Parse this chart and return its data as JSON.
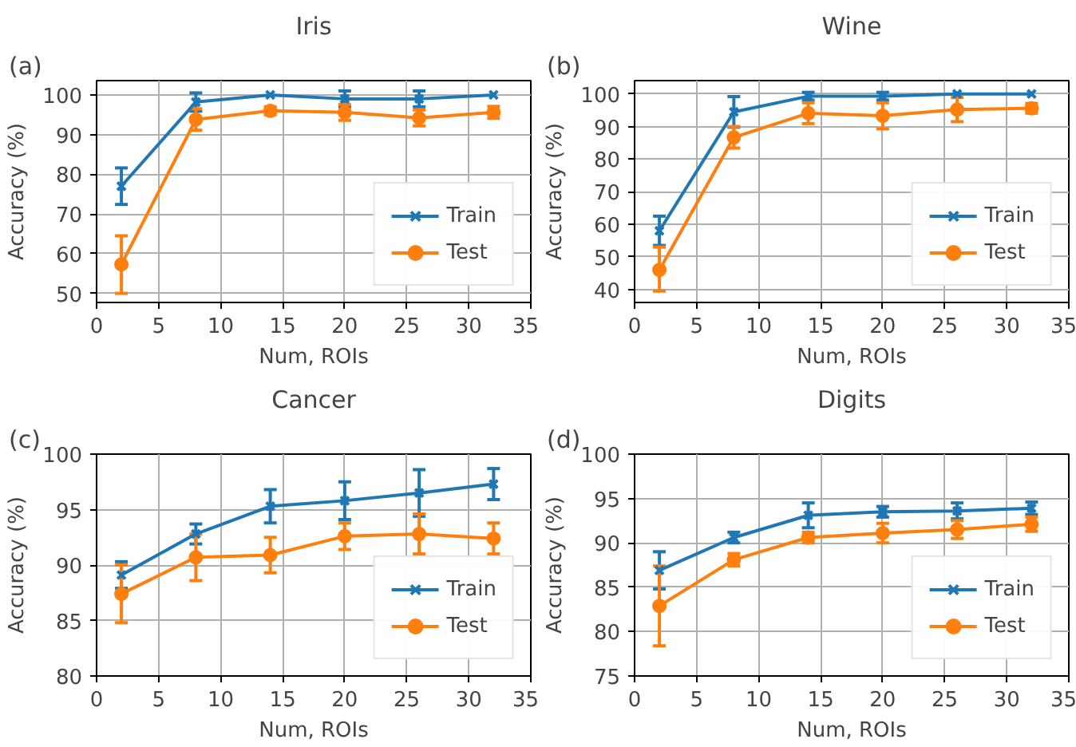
{
  "chart_data": [
    {
      "type": "line",
      "title": "Iris",
      "xlabel": "Num, ROIs",
      "ylabel": "Accuracy (%)",
      "annotations": [
        "(a)"
      ],
      "x": [
        2,
        8,
        14,
        20,
        26,
        32
      ],
      "xlim": [
        0,
        35
      ],
      "xticks": [
        0,
        5,
        10,
        15,
        20,
        25,
        30,
        35
      ],
      "ylim": [
        47.7,
        103.6
      ],
      "yticks": [
        50,
        60,
        70,
        80,
        90,
        100
      ],
      "grid": true,
      "legend": "bottom right",
      "series": [
        {
          "name": "Train",
          "color": "#1f77b4",
          "marker": "cross",
          "values": [
            77,
            98.2,
            100,
            99,
            99,
            100
          ],
          "errors": [
            4.6,
            2.3,
            null,
            2,
            2,
            null
          ]
        },
        {
          "name": "Test",
          "color": "#ff7f0e",
          "marker": "circle",
          "values": [
            57.3,
            93.8,
            96,
            95.6,
            94.2,
            95.6
          ],
          "errors": [
            [
              50,
              64.5
            ],
            2.7,
            1,
            2,
            2,
            1.5
          ]
        }
      ]
    },
    {
      "type": "line",
      "title": "Wine",
      "xlabel": "Num, ROIs",
      "ylabel": "Accuracy (%)",
      "annotations": [
        "(b)"
      ],
      "x": [
        2,
        8,
        14,
        20,
        26,
        32
      ],
      "xlim": [
        0,
        35
      ],
      "xticks": [
        0,
        5,
        10,
        15,
        20,
        25,
        30,
        35
      ],
      "ylim": [
        36,
        104.1
      ],
      "yticks": [
        40,
        50,
        60,
        70,
        80,
        90,
        100
      ],
      "grid": true,
      "legend": "bottom right",
      "series": [
        {
          "name": "Train",
          "color": "#1f77b4",
          "marker": "cross",
          "values": [
            58,
            94.5,
            99.3,
            99.3,
            100,
            100
          ],
          "errors": [
            4.5,
            4.7,
            1.2,
            1.2,
            null,
            null
          ]
        },
        {
          "name": "Test",
          "color": "#ff7f0e",
          "marker": "circle",
          "values": [
            46,
            86.7,
            94.1,
            93.3,
            95.2,
            95.6
          ],
          "errors": [
            [
              39.5,
              53
            ],
            3.3,
            3.2,
            4,
            3.7,
            1.5
          ]
        }
      ]
    },
    {
      "type": "line",
      "title": "Cancer",
      "xlabel": "Num, ROIs",
      "ylabel": "Accuracy (%)",
      "annotations": [
        "(c)"
      ],
      "x": [
        2,
        8,
        14,
        20,
        26,
        32
      ],
      "xlim": [
        0,
        35
      ],
      "xticks": [
        0,
        5,
        10,
        15,
        20,
        25,
        30,
        35
      ],
      "ylim": [
        80,
        100
      ],
      "yticks": [
        80,
        85,
        90,
        95,
        100
      ],
      "grid": true,
      "legend": "bottom right",
      "series": [
        {
          "name": "Train",
          "color": "#1f77b4",
          "marker": "cross",
          "values": [
            89.1,
            92.8,
            95.3,
            95.8,
            96.5,
            97.3
          ],
          "errors": [
            1.2,
            0.9,
            1.5,
            1.7,
            2.1,
            1.4
          ]
        },
        {
          "name": "Test",
          "color": "#ff7f0e",
          "marker": "circle",
          "values": [
            87.4,
            90.7,
            90.9,
            92.6,
            92.8,
            92.4
          ],
          "errors": [
            2.6,
            2.1,
            1.6,
            1.2,
            1.8,
            1.4
          ]
        }
      ]
    },
    {
      "type": "line",
      "title": "Digits",
      "xlabel": "Num, ROIs",
      "ylabel": "Accuracy (%)",
      "annotations": [
        "(d)"
      ],
      "x": [
        2,
        8,
        14,
        20,
        26,
        32
      ],
      "xlim": [
        0,
        35
      ],
      "xticks": [
        0,
        5,
        10,
        15,
        20,
        25,
        30,
        35
      ],
      "ylim": [
        75,
        100
      ],
      "yticks": [
        75,
        80,
        85,
        90,
        95,
        100
      ],
      "grid": true,
      "legend": "bottom right",
      "series": [
        {
          "name": "Train",
          "color": "#1f77b4",
          "marker": "cross",
          "values": [
            86.9,
            90.6,
            93.1,
            93.5,
            93.6,
            93.9
          ],
          "errors": [
            2.1,
            0.6,
            1.4,
            0.6,
            0.9,
            0.7
          ]
        },
        {
          "name": "Test",
          "color": "#ff7f0e",
          "marker": "circle",
          "values": [
            82.9,
            88.1,
            90.6,
            91.1,
            91.5,
            92.1
          ],
          "errors": [
            4.5,
            0.7,
            0.6,
            1.1,
            1.0,
            0.8
          ]
        }
      ]
    }
  ]
}
